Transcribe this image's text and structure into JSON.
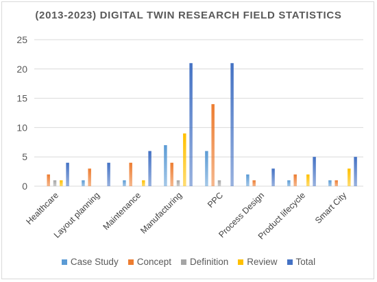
{
  "chart_data": {
    "type": "bar",
    "title": "(2013-2023) DIGITAL TWIN RESEARCH FIELD STATISTICS",
    "categories": [
      "Healthcare",
      "Layout planning",
      "Maintenance",
      "Manufacturing",
      "PPC",
      "Process Design",
      "Product lifecycle",
      "Smart City"
    ],
    "series": [
      {
        "name": "Case Study",
        "color": "#5b9bd5",
        "values": [
          0,
          1,
          1,
          7,
          6,
          2,
          1,
          1
        ]
      },
      {
        "name": "Concept",
        "color": "#ed7d31",
        "values": [
          2,
          3,
          4,
          4,
          14,
          1,
          2,
          1
        ]
      },
      {
        "name": "Definition",
        "color": "#a5a5a5",
        "values": [
          1,
          0,
          0,
          1,
          1,
          0,
          0,
          0
        ]
      },
      {
        "name": "Review",
        "color": "#ffc000",
        "values": [
          1,
          0,
          1,
          9,
          0,
          0,
          2,
          3
        ]
      },
      {
        "name": "Total",
        "color": "#4472c4",
        "values": [
          4,
          4,
          6,
          21,
          21,
          3,
          5,
          5
        ]
      }
    ],
    "yticks": [
      "0",
      "5",
      "10",
      "15",
      "20",
      "25"
    ],
    "ylim": [
      0,
      25
    ],
    "grid": true,
    "legend_position": "bottom"
  }
}
